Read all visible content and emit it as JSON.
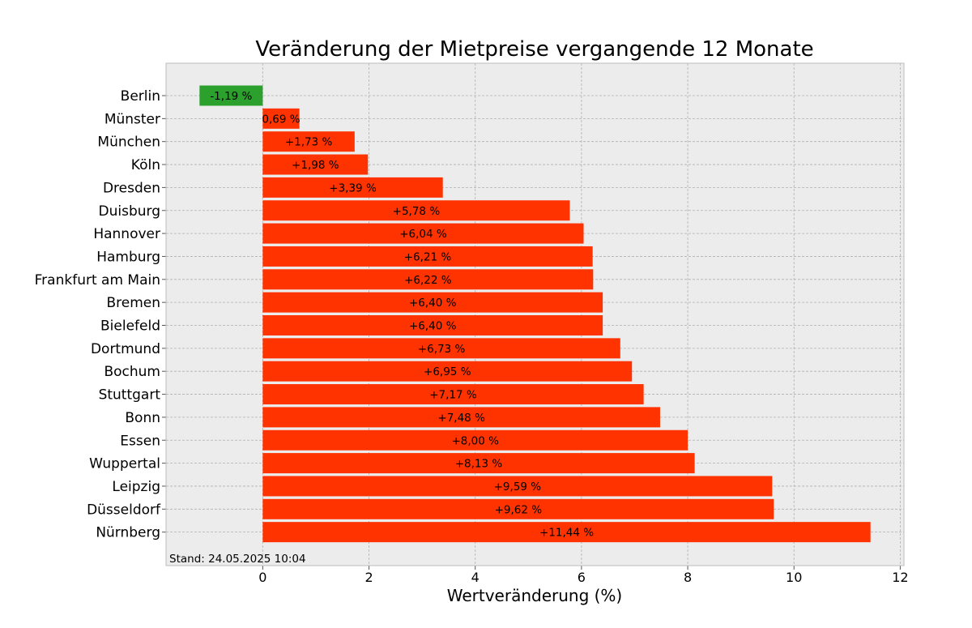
{
  "chart_data": {
    "type": "bar",
    "orientation": "horizontal",
    "title": "Veränderung der Mietpreise vergangende 12 Monate",
    "xlabel": "Wertveränderung (%)",
    "ylabel": "",
    "xlim": [
      -1.82,
      12.07
    ],
    "xticks": [
      0,
      2,
      4,
      6,
      8,
      10,
      12
    ],
    "grid": true,
    "footnote": "Stand: 24.05.2025 10:04",
    "colors": {
      "positive": "#ff3300",
      "negative": "#2ca02c",
      "background": "#ececec",
      "grid": "#b0b0b0"
    },
    "categories": [
      "Berlin",
      "Münster",
      "München",
      "Köln",
      "Dresden",
      "Duisburg",
      "Hannover",
      "Hamburg",
      "Frankfurt am Main",
      "Bremen",
      "Bielefeld",
      "Dortmund",
      "Bochum",
      "Stuttgart",
      "Bonn",
      "Essen",
      "Wuppertal",
      "Leipzig",
      "Düsseldorf",
      "Nürnberg"
    ],
    "values": [
      -1.19,
      0.69,
      1.73,
      1.98,
      3.39,
      5.78,
      6.04,
      6.21,
      6.22,
      6.4,
      6.4,
      6.73,
      6.95,
      7.17,
      7.48,
      8.0,
      8.13,
      9.59,
      9.62,
      11.44
    ],
    "data_labels": [
      "-1,19 %",
      "0,69 %",
      "+1,73 %",
      "+1,98 %",
      "+3,39 %",
      "+5,78 %",
      "+6,04 %",
      "+6,21 %",
      "+6,22 %",
      "+6,40 %",
      "+6,40 %",
      "+6,73 %",
      "+6,95 %",
      "+7,17 %",
      "+7,48 %",
      "+8,00 %",
      "+8,13 %",
      "+9,59 %",
      "+9,62 %",
      "+11,44 %"
    ]
  }
}
